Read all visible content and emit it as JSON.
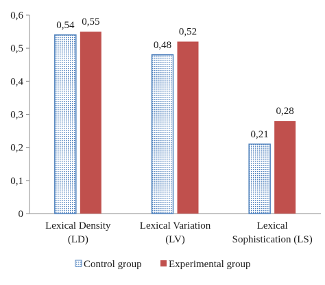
{
  "chart_data": {
    "type": "bar",
    "categories": [
      [
        "Lexical Density",
        "(LD)"
      ],
      [
        "Lexical Variation",
        "(LV)"
      ],
      [
        "Lexical",
        "Sophistication (LS)"
      ]
    ],
    "series": [
      {
        "name": "Control group",
        "values": [
          0.54,
          0.48,
          0.21
        ],
        "labels": [
          "0,54",
          "0,48",
          "0,21"
        ],
        "color": "#4f81bd",
        "pattern": "dotted"
      },
      {
        "name": "Experimental group",
        "values": [
          0.55,
          0.52,
          0.28
        ],
        "labels": [
          "0,55",
          "0,52",
          "0,28"
        ],
        "color": "#c0504d",
        "pattern": "solid"
      }
    ],
    "yticks": [
      "0",
      "0,1",
      "0,2",
      "0,3",
      "0,4",
      "0,5",
      "0,6"
    ],
    "ylim": [
      0,
      0.6
    ],
    "grid": false,
    "legend": "bottom"
  }
}
